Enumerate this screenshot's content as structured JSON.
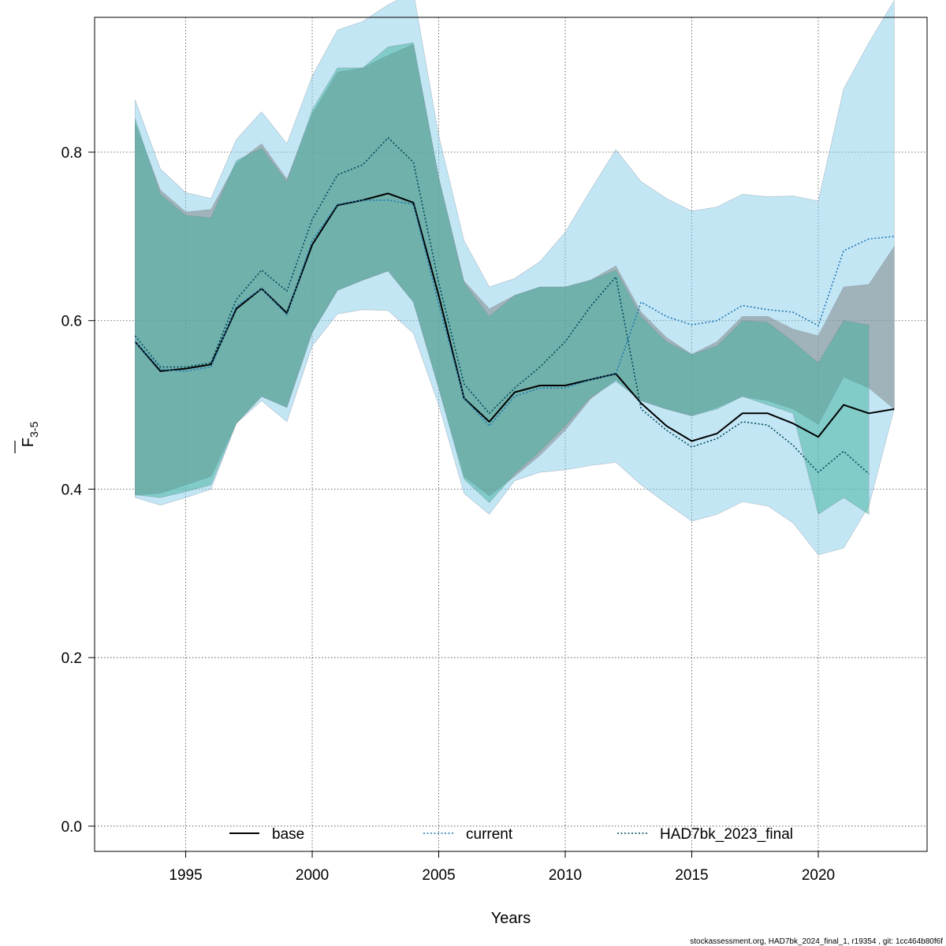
{
  "chart_data": {
    "type": "area",
    "title": "",
    "xlabel": "Years",
    "ylabel_base": "F",
    "ylabel_sub": "3-5",
    "xlim": [
      1991.4,
      2024.3
    ],
    "ylim": [
      -0.03,
      0.96
    ],
    "x_ticks": [
      "1995",
      "2000",
      "2005",
      "2010",
      "2015",
      "2020"
    ],
    "y_ticks": [
      "0.0",
      "0.2",
      "0.4",
      "0.6",
      "0.8"
    ],
    "grid": true,
    "legend_position": "bottom",
    "series": [
      {
        "name": "base",
        "line_color": "#000000",
        "line_style": "solid",
        "band_color": "#808080",
        "band_opacity": 0.5,
        "x": [
          1993,
          1994,
          1995,
          1996,
          1997,
          1998,
          1999,
          2000,
          2001,
          2002,
          2003,
          2004,
          2005,
          2006,
          2007,
          2008,
          2009,
          2010,
          2011,
          2012,
          2013,
          2014,
          2015,
          2016,
          2017,
          2018,
          2019,
          2020,
          2021,
          2022,
          2023
        ],
        "mean": [
          0.575,
          0.54,
          0.543,
          0.548,
          0.614,
          0.638,
          0.609,
          0.69,
          0.737,
          0.743,
          0.751,
          0.74,
          0.63,
          0.508,
          0.48,
          0.515,
          0.523,
          0.523,
          0.53,
          0.537,
          0.502,
          0.475,
          0.457,
          0.466,
          0.49,
          0.49,
          0.478,
          0.462,
          0.5,
          0.49,
          0.495
        ],
        "lower": [
          0.393,
          0.395,
          0.405,
          0.415,
          0.478,
          0.51,
          0.497,
          0.586,
          0.636,
          0.648,
          0.659,
          0.622,
          0.52,
          0.415,
          0.392,
          0.415,
          0.44,
          0.47,
          0.507,
          0.53,
          0.505,
          0.495,
          0.487,
          0.497,
          0.51,
          0.505,
          0.495,
          0.477,
          0.533,
          0.52,
          0.495
        ],
        "upper": [
          0.835,
          0.755,
          0.729,
          0.732,
          0.787,
          0.81,
          0.768,
          0.845,
          0.895,
          0.9,
          0.915,
          0.928,
          0.77,
          0.647,
          0.614,
          0.63,
          0.64,
          0.64,
          0.648,
          0.665,
          0.61,
          0.58,
          0.56,
          0.575,
          0.605,
          0.605,
          0.59,
          0.582,
          0.64,
          0.643,
          0.688
        ]
      },
      {
        "name": "current",
        "line_color": "#1f78b4",
        "line_style": "dotted",
        "band_color": "#87ceeb",
        "band_opacity": 0.5,
        "x": [
          1993,
          1994,
          1995,
          1996,
          1997,
          1998,
          1999,
          2000,
          2001,
          2002,
          2003,
          2004,
          2005,
          2006,
          2007,
          2008,
          2009,
          2010,
          2011,
          2012,
          2013,
          2014,
          2015,
          2016,
          2017,
          2018,
          2019,
          2020,
          2021,
          2022,
          2023
        ],
        "mean": [
          0.575,
          0.542,
          0.54,
          0.545,
          0.617,
          0.638,
          0.607,
          0.695,
          0.738,
          0.743,
          0.743,
          0.738,
          0.62,
          0.508,
          0.475,
          0.51,
          0.52,
          0.52,
          0.53,
          0.537,
          0.622,
          0.605,
          0.595,
          0.6,
          0.618,
          0.613,
          0.61,
          0.594,
          0.683,
          0.697,
          0.7
        ],
        "lower": [
          0.39,
          0.381,
          0.39,
          0.4,
          0.478,
          0.505,
          0.48,
          0.57,
          0.608,
          0.613,
          0.612,
          0.585,
          0.5,
          0.395,
          0.37,
          0.41,
          0.42,
          0.423,
          0.428,
          0.432,
          0.405,
          0.383,
          0.362,
          0.37,
          0.385,
          0.38,
          0.36,
          0.322,
          0.33,
          0.38,
          0.495
        ],
        "upper": [
          0.862,
          0.78,
          0.752,
          0.745,
          0.815,
          0.848,
          0.81,
          0.89,
          0.945,
          0.955,
          0.975,
          0.99,
          0.82,
          0.695,
          0.64,
          0.65,
          0.67,
          0.705,
          0.755,
          0.803,
          0.765,
          0.745,
          0.73,
          0.735,
          0.75,
          0.747,
          0.748,
          0.742,
          0.875,
          0.93,
          0.98
        ]
      },
      {
        "name": "HAD7bk_2023_final",
        "line_color": "#00495a",
        "line_style": "dotted",
        "band_color": "#3fb09d",
        "band_opacity": 0.5,
        "x": [
          1993,
          1994,
          1995,
          1996,
          1997,
          1998,
          1999,
          2000,
          2001,
          2002,
          2003,
          2004,
          2005,
          2006,
          2007,
          2008,
          2009,
          2010,
          2011,
          2012,
          2013,
          2014,
          2015,
          2016,
          2017,
          2018,
          2019,
          2020,
          2021,
          2022
        ],
        "mean": [
          0.582,
          0.545,
          0.545,
          0.55,
          0.625,
          0.66,
          0.635,
          0.72,
          0.773,
          0.785,
          0.817,
          0.788,
          0.645,
          0.525,
          0.49,
          0.52,
          0.545,
          0.575,
          0.617,
          0.652,
          0.495,
          0.47,
          0.45,
          0.46,
          0.48,
          0.476,
          0.452,
          0.42,
          0.445,
          0.418
        ],
        "lower": [
          0.393,
          0.39,
          0.397,
          0.405,
          0.478,
          0.51,
          0.497,
          0.586,
          0.636,
          0.648,
          0.659,
          0.622,
          0.52,
          0.412,
          0.384,
          0.418,
          0.445,
          0.475,
          0.509,
          0.528,
          0.505,
          0.495,
          0.487,
          0.495,
          0.51,
          0.5,
          0.49,
          0.37,
          0.39,
          0.37
        ],
        "upper": [
          0.84,
          0.75,
          0.725,
          0.722,
          0.79,
          0.805,
          0.765,
          0.85,
          0.9,
          0.9,
          0.925,
          0.93,
          0.77,
          0.645,
          0.605,
          0.63,
          0.64,
          0.64,
          0.648,
          0.66,
          0.605,
          0.575,
          0.56,
          0.57,
          0.6,
          0.598,
          0.575,
          0.55,
          0.6,
          0.595
        ]
      }
    ]
  },
  "footer": "stockassessment.org, HAD7bk_2024_final_1, r19354 , git: 1cc464b80f6f"
}
